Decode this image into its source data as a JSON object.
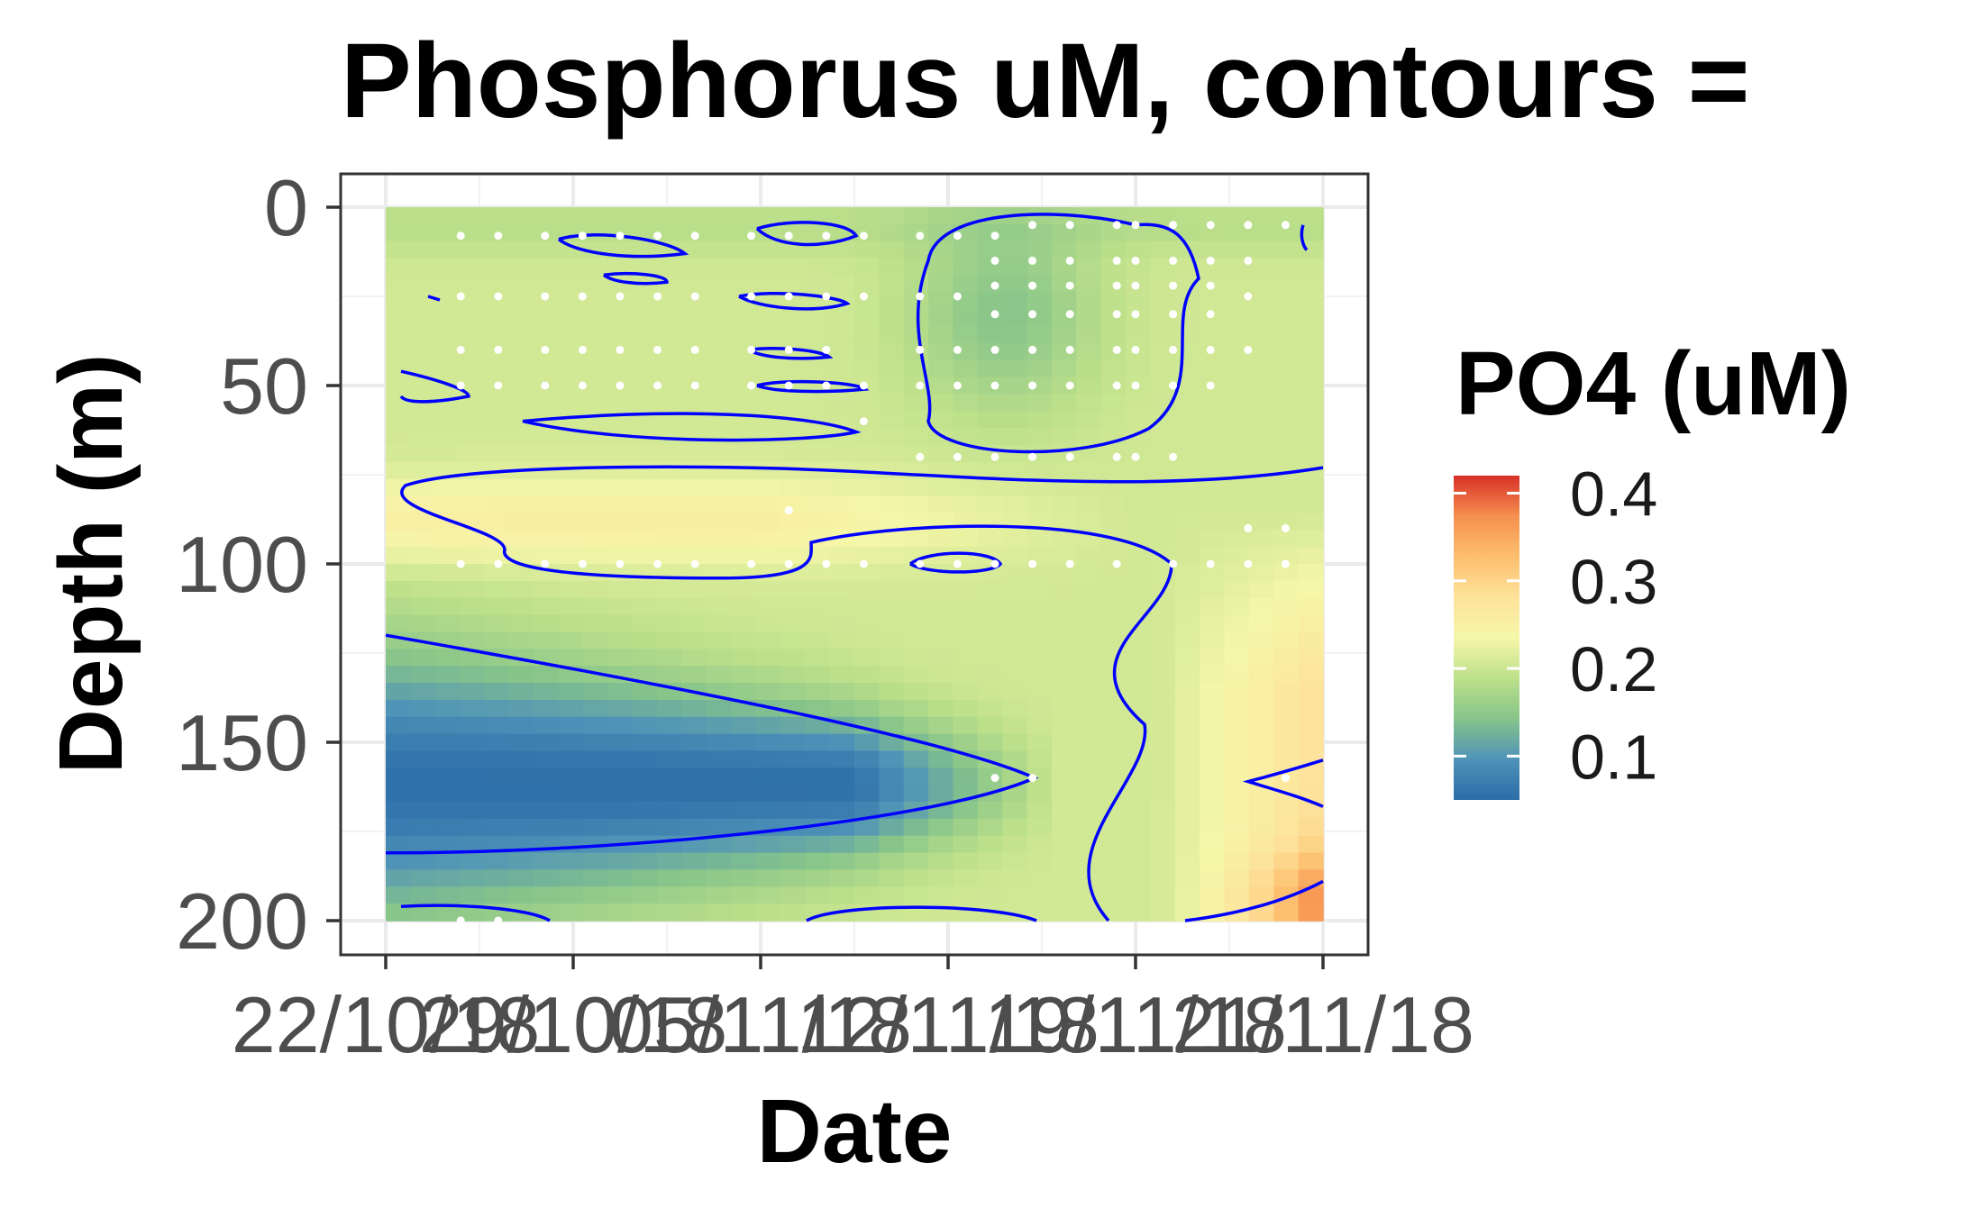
{
  "chart_data": {
    "type": "heatmap",
    "title": "Phosphorus uM, contours =",
    "xlabel": "Date",
    "ylabel": "Depth (m)",
    "x_tick_labels": [
      "22/10/18",
      "29/10/18",
      "05/11/18",
      "12/11/18",
      "19/11/18",
      "21/11/18"
    ],
    "y_ticks": [
      0,
      50,
      100,
      150,
      200
    ],
    "ylim": [
      0,
      200
    ],
    "y_reversed": true,
    "grid": true,
    "legend": {
      "title": "PO4 (uM)",
      "position": "right",
      "ticks": [
        0.1,
        0.2,
        0.3,
        0.4
      ],
      "range": [
        0.05,
        0.42
      ],
      "colormap": [
        "#2b6ca8",
        "#4f93b8",
        "#86c48a",
        "#bde08a",
        "#f5f7a8",
        "#fde29a",
        "#fdbf6f",
        "#f68f4f",
        "#d73027"
      ]
    },
    "contour_color": "#0000ff",
    "sample_point_color": "#ffffff"
  }
}
